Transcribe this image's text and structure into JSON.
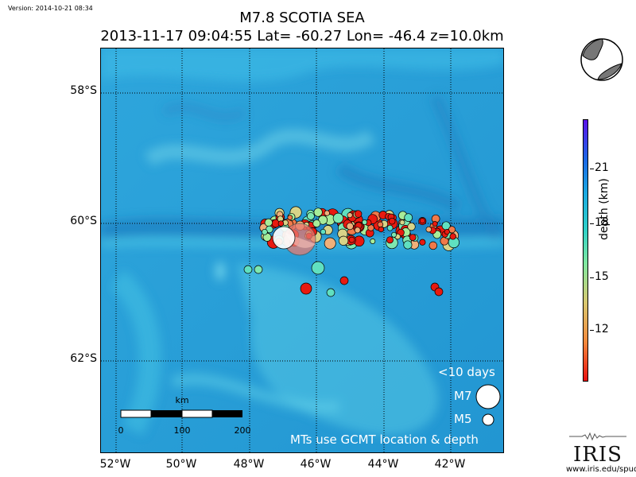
{
  "version": "Version: 2014-10-21 08:34",
  "title_line1": "M7.8 SCOTIA SEA",
  "title_line2": "2013-11-17 09:04:55 Lat= -60.27 Lon= -46.4 z=10.0km",
  "lat_labels": [
    "58°S",
    "60°S",
    "62°S"
  ],
  "lon_labels": [
    "52°W",
    "50°W",
    "48°W",
    "46°W",
    "44°W",
    "42°W"
  ],
  "legend": {
    "days": "<10 days",
    "m7": "M7",
    "m5": "M5",
    "note": "MTs use GCMT location & depth"
  },
  "scalebar": {
    "unit": "km",
    "ticks": [
      "0",
      "100",
      "200"
    ]
  },
  "colorbar": {
    "title": "depth (km)",
    "ticks": [
      "12",
      "15",
      "18",
      "21"
    ]
  },
  "credit": {
    "logo": "IRIS",
    "url": "www.iris.edu/spud"
  },
  "colors": {
    "ocean": "#2a9fd8",
    "shallow": "#e81010",
    "deep": "#5a12e8"
  }
}
